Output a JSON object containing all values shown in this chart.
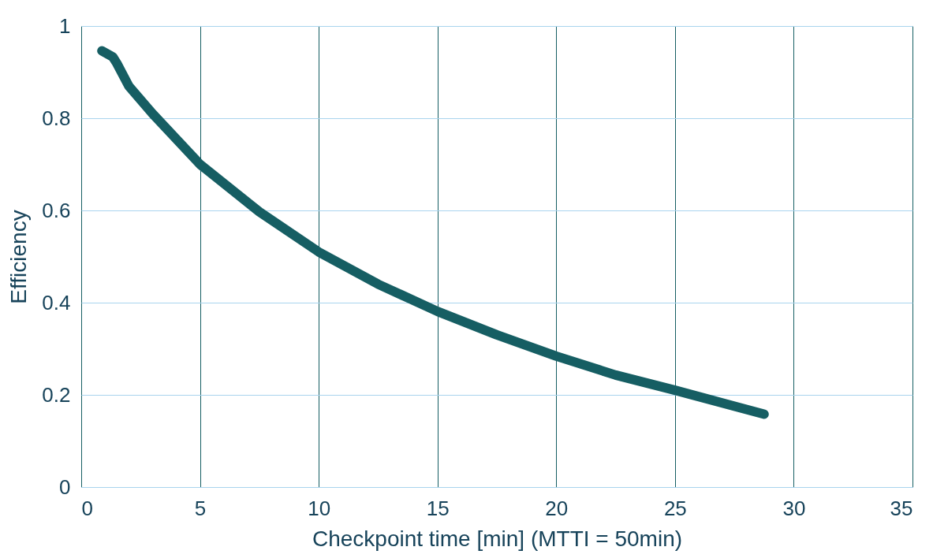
{
  "chart_data": {
    "type": "line",
    "xlabel": "Checkpoint time [min] (MTTI = 50min)",
    "ylabel": "Efficiency",
    "x": [
      0.87,
      1.33,
      1.5,
      2,
      3,
      5,
      7.5,
      10,
      12.5,
      15,
      17.5,
      20,
      22.5,
      25,
      28.75
    ],
    "series": [
      {
        "color": "#165e63",
        "values": [
          0.946,
          0.933,
          0.919,
          0.87,
          0.81,
          0.7,
          0.597,
          0.51,
          0.44,
          0.381,
          0.33,
          0.284,
          0.243,
          0.21,
          0.158
        ]
      }
    ],
    "xlim": [
      0,
      35
    ],
    "xticks": [
      0,
      5,
      10,
      15,
      20,
      25,
      30,
      35
    ],
    "ylim": [
      0,
      1
    ],
    "yticks": [
      0,
      0.2,
      0.4,
      0.6,
      0.8,
      1
    ],
    "grid": true,
    "line_style": "solid"
  }
}
